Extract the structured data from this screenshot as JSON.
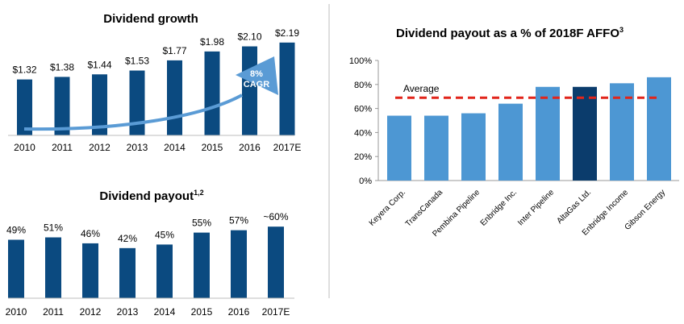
{
  "colors": {
    "dark_bar": "#0b4a80",
    "light_bar": "#4d97d3",
    "highlight_bar": "#0b3c6c",
    "avg_line": "#e1251b",
    "arrow": "#5a9bd5",
    "divider": "#bdbdbd"
  },
  "chart_data": [
    {
      "type": "bar",
      "title": "Dividend growth",
      "categories": [
        "2010",
        "2011",
        "2012",
        "2013",
        "2014",
        "2015",
        "2016",
        "2017E"
      ],
      "values": [
        1.32,
        1.38,
        1.44,
        1.53,
        1.77,
        1.98,
        2.1,
        2.19
      ],
      "labels": [
        "$1.32",
        "$1.38",
        "$1.44",
        "$1.53",
        "$1.77",
        "$1.98",
        "$2.10",
        "$2.19"
      ],
      "annotation": {
        "line1": "8%",
        "line2": "CAGR"
      },
      "xlabel": "",
      "ylabel": "",
      "grid": false
    },
    {
      "type": "bar",
      "title": "Dividend payout",
      "title_sup": "1,2",
      "categories": [
        "2010",
        "2011",
        "2012",
        "2013",
        "2014",
        "2015",
        "2016",
        "2017E"
      ],
      "values": [
        49,
        51,
        46,
        42,
        45,
        55,
        57,
        60
      ],
      "labels": [
        "49%",
        "51%",
        "46%",
        "42%",
        "45%",
        "55%",
        "57%",
        "~60%"
      ],
      "xlabel": "",
      "ylabel": "",
      "grid": false
    },
    {
      "type": "bar",
      "title": "Dividend payout as a % of 2018F AFFO",
      "title_sup": "3",
      "categories": [
        "Keyera Corp.",
        "TransCanada",
        "Pembina Pipeline",
        "Enbridge Inc.",
        "Inter Pipeline",
        "AltaGas Ltd.",
        "Enbridge Income",
        "Gibson Energy"
      ],
      "values": [
        54,
        54,
        56,
        64,
        78,
        78,
        81,
        86
      ],
      "highlight": "AltaGas Ltd.",
      "yticks": [
        "0%",
        "20%",
        "40%",
        "60%",
        "80%",
        "100%"
      ],
      "ylim": [
        0,
        100
      ],
      "average": {
        "label": "Average",
        "value": 69
      },
      "xlabel": "",
      "ylabel": "",
      "grid": false
    }
  ]
}
